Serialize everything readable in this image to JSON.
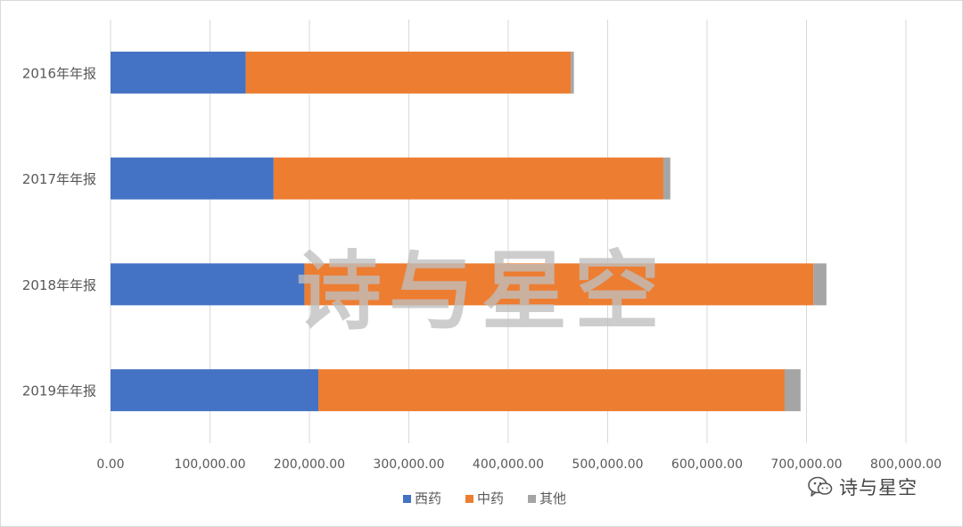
{
  "colors": {
    "west_medicine": "#4472C4",
    "chinese_medicine": "#ED7D31",
    "other": "#A5A5A5",
    "gridline": "#D9D9D9",
    "axis_text": "#595959",
    "watermark": "#BFBFBF"
  },
  "watermark": "诗与星空",
  "badge": {
    "text": "诗与星空",
    "icon": "wechat-icon"
  },
  "chart_data": {
    "type": "bar",
    "orientation": "horizontal",
    "stacked": true,
    "categories": [
      "2016年年报",
      "2017年年报",
      "2018年年报",
      "2019年年报"
    ],
    "series": [
      {
        "name": "西药",
        "values": [
          136000,
          164000,
          195000,
          209000
        ],
        "color": "#4472C4"
      },
      {
        "name": "中药",
        "values": [
          327000,
          392000,
          512000,
          469000
        ],
        "color": "#ED7D31"
      },
      {
        "name": "其他",
        "values": [
          3000,
          7000,
          13000,
          16000
        ],
        "color": "#A5A5A5"
      }
    ],
    "xlim": [
      0,
      800000
    ],
    "xticks": [
      0,
      100000,
      200000,
      300000,
      400000,
      500000,
      600000,
      700000,
      800000
    ],
    "xtick_labels": [
      "0.00",
      "100,000.00",
      "200,000.00",
      "300,000.00",
      "400,000.00",
      "500,000.00",
      "600,000.00",
      "700,000.00",
      "800,000.00"
    ],
    "grid": true,
    "legend_position": "bottom",
    "title": "",
    "xlabel": "",
    "ylabel": ""
  }
}
